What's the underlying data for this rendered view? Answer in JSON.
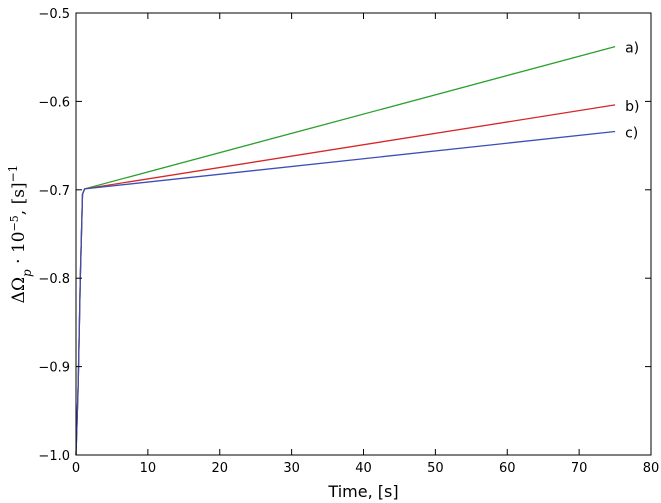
{
  "chart_data": {
    "type": "line",
    "xlabel": "Time, [s]",
    "ylabel": "ΔΩ_p · 10^−5 , [s]^−1",
    "ylabel_parts": {
      "main": "ΔΩ",
      "sub": "p",
      "mid": " · 10",
      "exp": "−5",
      "unit": ", [s]",
      "unit_exp": "−1"
    },
    "xlim": [
      0,
      80
    ],
    "ylim": [
      -1.0,
      -0.5
    ],
    "xticks": [
      0,
      10,
      20,
      30,
      40,
      50,
      60,
      70,
      80
    ],
    "yticks": [
      -1.0,
      -0.9,
      -0.8,
      -0.7,
      -0.6,
      -0.5
    ],
    "xtick_labels": [
      "0",
      "10",
      "20",
      "30",
      "40",
      "50",
      "60",
      "70",
      "80"
    ],
    "ytick_labels": [
      "−1.0",
      "−0.9",
      "−0.8",
      "−0.7",
      "−0.6",
      "−0.5"
    ],
    "grid": false,
    "legend": "none",
    "series": [
      {
        "label": "a)",
        "color": "#2ca02c",
        "x": [
          0,
          0.3,
          0.6,
          0.9,
          1.2,
          75
        ],
        "y": [
          -1.0,
          -0.92,
          -0.8,
          -0.705,
          -0.699,
          -0.538
        ]
      },
      {
        "label": "b)",
        "color": "#d62728",
        "x": [
          0,
          0.3,
          0.6,
          0.9,
          1.2,
          75
        ],
        "y": [
          -1.0,
          -0.92,
          -0.8,
          -0.705,
          -0.699,
          -0.604
        ]
      },
      {
        "label": "c)",
        "color": "#3c4fb5",
        "x": [
          0,
          0.3,
          0.6,
          0.9,
          1.2,
          75
        ],
        "y": [
          -1.0,
          -0.92,
          -0.8,
          -0.705,
          -0.699,
          -0.634
        ]
      }
    ]
  }
}
